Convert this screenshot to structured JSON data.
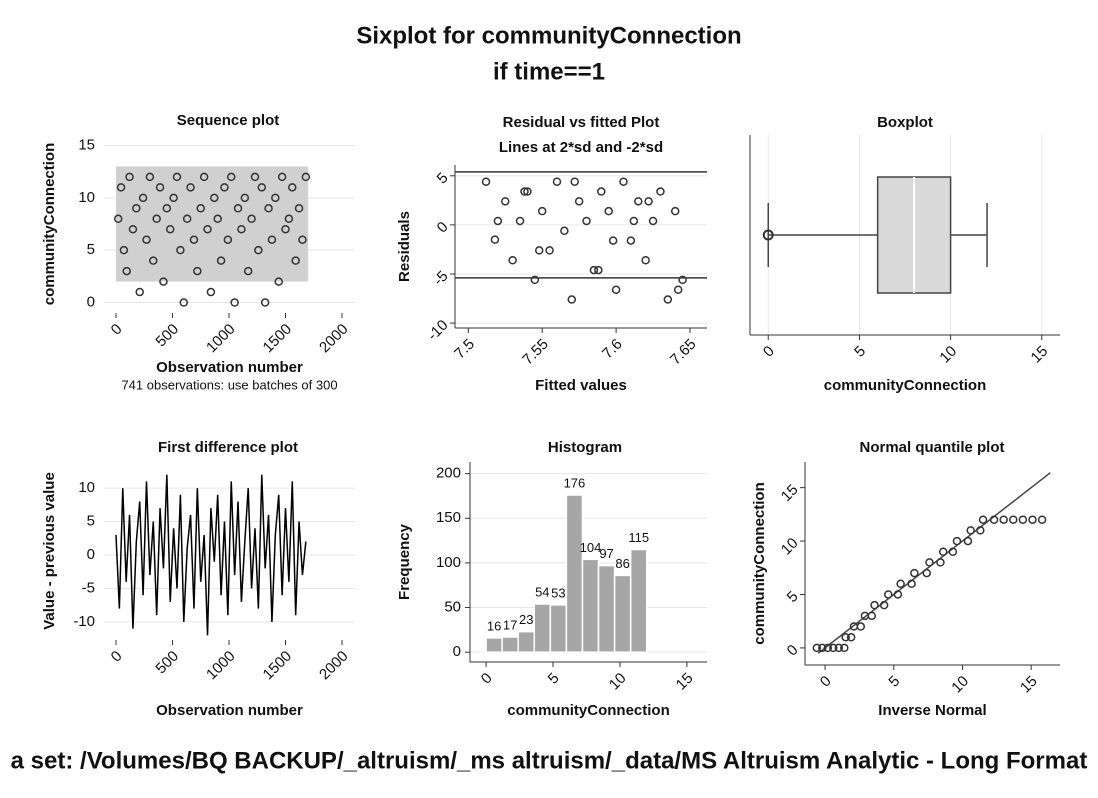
{
  "title": "Sixplot for communityConnection",
  "subtitle": "if time==1",
  "footer": "a set: /Volumes/BQ BACKUP/_altruism/_ms altruism/_data/MS Altruism Analytic - Long Format",
  "chart_data": [
    {
      "type": "scatter",
      "title": "Sequence plot",
      "xlabel": "Observation number",
      "ylabel": "communityConnection",
      "note": "741 observations: use batches of 300",
      "grid": "y",
      "xlim": [
        -106,
        2115
      ],
      "ylim": [
        -1,
        16
      ],
      "xticks": [
        0,
        500,
        1000,
        1500,
        2000
      ],
      "yticks": [
        0,
        5,
        10,
        15
      ],
      "band_x": [
        0,
        1700
      ],
      "band_y": [
        2,
        13
      ],
      "x": [
        20,
        45,
        70,
        95,
        120,
        150,
        180,
        210,
        240,
        270,
        300,
        330,
        360,
        390,
        420,
        450,
        480,
        510,
        540,
        570,
        600,
        630,
        660,
        690,
        720,
        750,
        780,
        810,
        840,
        870,
        900,
        930,
        960,
        990,
        1020,
        1050,
        1080,
        1110,
        1140,
        1170,
        1200,
        1230,
        1260,
        1290,
        1320,
        1350,
        1380,
        1410,
        1440,
        1470,
        1500,
        1530,
        1560,
        1590,
        1620,
        1650,
        1680
      ],
      "values": [
        8,
        11,
        5,
        3,
        12,
        7,
        9,
        1,
        10,
        6,
        12,
        4,
        8,
        11,
        2,
        9,
        7,
        10,
        12,
        5,
        0,
        8,
        11,
        6,
        3,
        9,
        12,
        7,
        1,
        10,
        8,
        4,
        11,
        6,
        12,
        0,
        9,
        7,
        10,
        3,
        8,
        12,
        5,
        11,
        0,
        9,
        6,
        10,
        2,
        12,
        7,
        8,
        11,
        4,
        9,
        6,
        12
      ]
    },
    {
      "type": "scatter",
      "title": "Residual vs fitted Plot",
      "subtitle": "Lines at 2*sd and -2*sd",
      "xlabel": "Fitted values",
      "ylabel": "Residuals",
      "grid": "y",
      "xlim": [
        7.491,
        7.6615
      ],
      "ylim": [
        -10.5,
        6.1
      ],
      "xticks": [
        7.5,
        7.55,
        7.6,
        7.65
      ],
      "yticks": [
        5,
        0,
        -5,
        -10
      ],
      "hlines": [
        5.4,
        -5.4
      ],
      "x": [
        7.512,
        7.518,
        7.525,
        7.53,
        7.535,
        7.54,
        7.545,
        7.55,
        7.555,
        7.56,
        7.565,
        7.57,
        7.575,
        7.58,
        7.585,
        7.59,
        7.595,
        7.6,
        7.605,
        7.61,
        7.615,
        7.62,
        7.625,
        7.63,
        7.635,
        7.64,
        7.645,
        7.52,
        7.548,
        7.572,
        7.598,
        7.622,
        7.642,
        7.538,
        7.588,
        7.612
      ],
      "values": [
        4.4,
        -1.5,
        2.4,
        -3.6,
        0.4,
        3.4,
        -5.6,
        1.4,
        -2.6,
        4.4,
        -0.6,
        -7.6,
        2.4,
        0.4,
        -4.6,
        3.4,
        1.4,
        -6.6,
        4.4,
        -1.6,
        2.4,
        -3.6,
        0.4,
        3.4,
        -7.6,
        1.4,
        -5.6,
        0.4,
        -2.6,
        4.4,
        -1.6,
        2.4,
        -6.6,
        3.4,
        -4.6,
        0.4
      ]
    },
    {
      "type": "box",
      "title": "Boxplot",
      "xlabel": "communityConnection",
      "grid": "x",
      "xlim": [
        -1,
        16
      ],
      "xticks": [
        0,
        5,
        10,
        15
      ],
      "min": 0,
      "q1": 6,
      "median": 8,
      "q3": 10,
      "max": 12,
      "outliers": [
        0
      ],
      "color": "#d9d9d9"
    },
    {
      "type": "line",
      "title": "First difference plot",
      "xlabel": "Observation number",
      "ylabel": "Value - previous value",
      "grid": "y",
      "xlim": [
        -106,
        2115
      ],
      "ylim": [
        -12.7,
        13.9
      ],
      "xticks": [
        0,
        500,
        1000,
        1500,
        2000
      ],
      "yticks": [
        10,
        5,
        0,
        -5,
        -10
      ],
      "x": [
        0,
        30,
        60,
        90,
        120,
        150,
        180,
        210,
        240,
        270,
        300,
        330,
        360,
        390,
        420,
        450,
        480,
        510,
        540,
        570,
        600,
        630,
        660,
        690,
        720,
        750,
        780,
        810,
        840,
        870,
        900,
        930,
        960,
        990,
        1020,
        1050,
        1080,
        1110,
        1140,
        1170,
        1200,
        1230,
        1260,
        1290,
        1320,
        1350,
        1380,
        1410,
        1440,
        1470,
        1500,
        1530,
        1560,
        1590,
        1620,
        1650,
        1680
      ],
      "values": [
        3,
        -8,
        10,
        -4,
        6,
        -11,
        2,
        8,
        -6,
        11,
        -3,
        5,
        -9,
        7,
        -2,
        12,
        -7,
        4,
        -5,
        9,
        -10,
        1,
        6,
        -8,
        10,
        -4,
        3,
        -12,
        7,
        -1,
        9,
        -6,
        5,
        -9,
        11,
        -3,
        8,
        -7,
        2,
        10,
        -5,
        4,
        -8,
        12,
        -2,
        6,
        -10,
        3,
        9,
        -6,
        7,
        -4,
        11,
        -9,
        5,
        -3,
        2
      ]
    },
    {
      "type": "histogram",
      "title": "Histogram",
      "xlabel": "communityConnection",
      "ylabel": "Frequency",
      "grid": "y",
      "color": "#a6a6a6",
      "xlim": [
        -1.2,
        16.5
      ],
      "ylim": [
        -11,
        213
      ],
      "xticks": [
        0,
        5,
        10,
        15
      ],
      "yticks": [
        0,
        50,
        100,
        150,
        200
      ],
      "bins": [
        0,
        1.2,
        2.4,
        3.6,
        4.8,
        6,
        7.2,
        8.4,
        9.6,
        10.8,
        12
      ],
      "counts": [
        16,
        17,
        23,
        54,
        53,
        176,
        104,
        97,
        86,
        115
      ]
    },
    {
      "type": "scatter",
      "title": "Normal quantile plot",
      "xlabel": "Inverse Normal",
      "ylabel": "communityConnection",
      "grid": false,
      "xlim": [
        -1.46,
        17.1
      ],
      "ylim": [
        -1.6,
        17.4
      ],
      "xticks": [
        0,
        5,
        10,
        15
      ],
      "yticks": [
        0,
        5,
        10,
        15
      ],
      "line_x": [
        -0.5,
        16.4
      ],
      "line_y": [
        -0.5,
        16.4
      ],
      "x": [
        -0.6,
        -0.2,
        0.2,
        0.6,
        1.0,
        1.4,
        1.5,
        1.9,
        2.1,
        2.6,
        2.9,
        3.4,
        3.6,
        4.3,
        4.6,
        5.3,
        5.5,
        6.3,
        6.5,
        7.4,
        7.6,
        8.4,
        8.6,
        9.3,
        9.6,
        10.4,
        10.6,
        11.3,
        11.5,
        12.3,
        13,
        13.7,
        14.4,
        15.1,
        15.8
      ],
      "values": [
        0,
        0,
        0,
        0,
        0,
        0,
        1,
        1,
        2,
        2,
        3,
        3,
        4,
        4,
        5,
        5,
        6,
        6,
        7,
        7,
        8,
        8,
        9,
        9,
        10,
        10,
        11,
        11,
        12,
        12,
        12,
        12,
        12,
        12,
        12
      ]
    }
  ]
}
